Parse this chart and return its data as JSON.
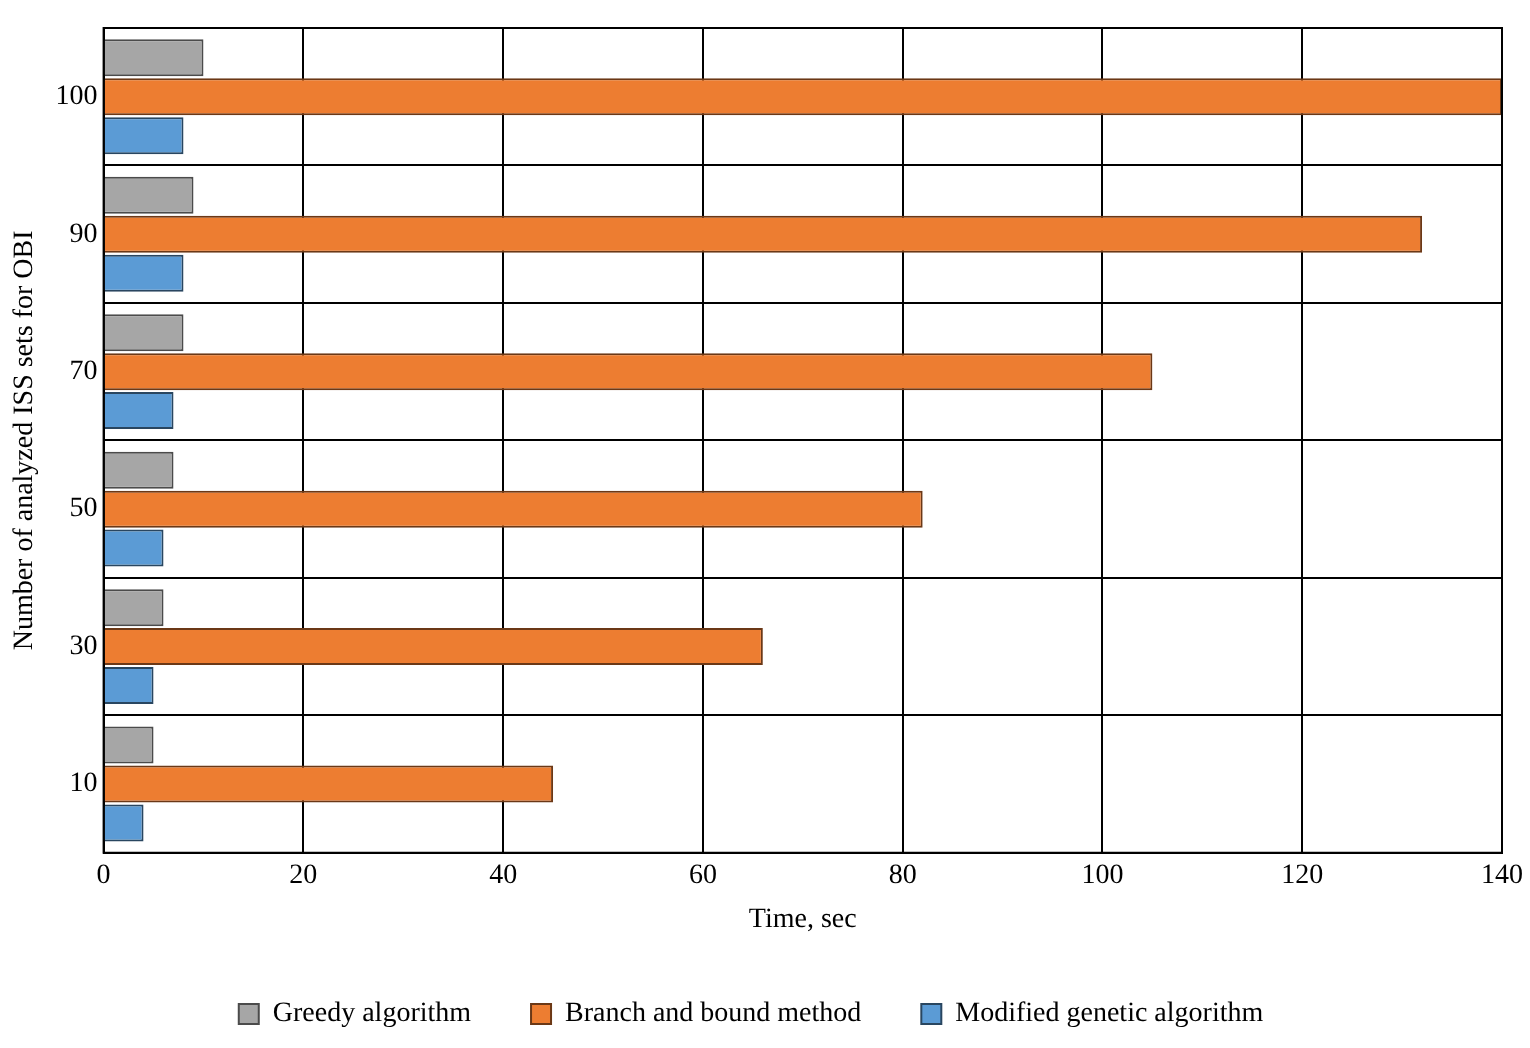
{
  "chart_data": {
    "type": "bar",
    "orientation": "horizontal",
    "xlabel": "Time, sec",
    "ylabel": "Number of analyzed ISS sets for OBI",
    "categories": [
      "100",
      "90",
      "70",
      "50",
      "30",
      "10"
    ],
    "series": [
      {
        "name": "Greedy algorithm",
        "color": "#a6a6a6",
        "values": [
          10,
          9,
          8,
          7,
          6,
          5
        ]
      },
      {
        "name": "Branch and bound method",
        "color": "#ed7d31",
        "values": [
          140,
          132,
          105,
          82,
          66,
          45
        ]
      },
      {
        "name": "Modified genetic algorithm",
        "color": "#5b9bd5",
        "values": [
          8,
          8,
          7,
          6,
          5,
          4
        ]
      }
    ],
    "xlim": [
      0,
      140
    ],
    "xticks": [
      0,
      20,
      40,
      60,
      80,
      100,
      120,
      140
    ],
    "grid": true,
    "legend": "bottom"
  }
}
